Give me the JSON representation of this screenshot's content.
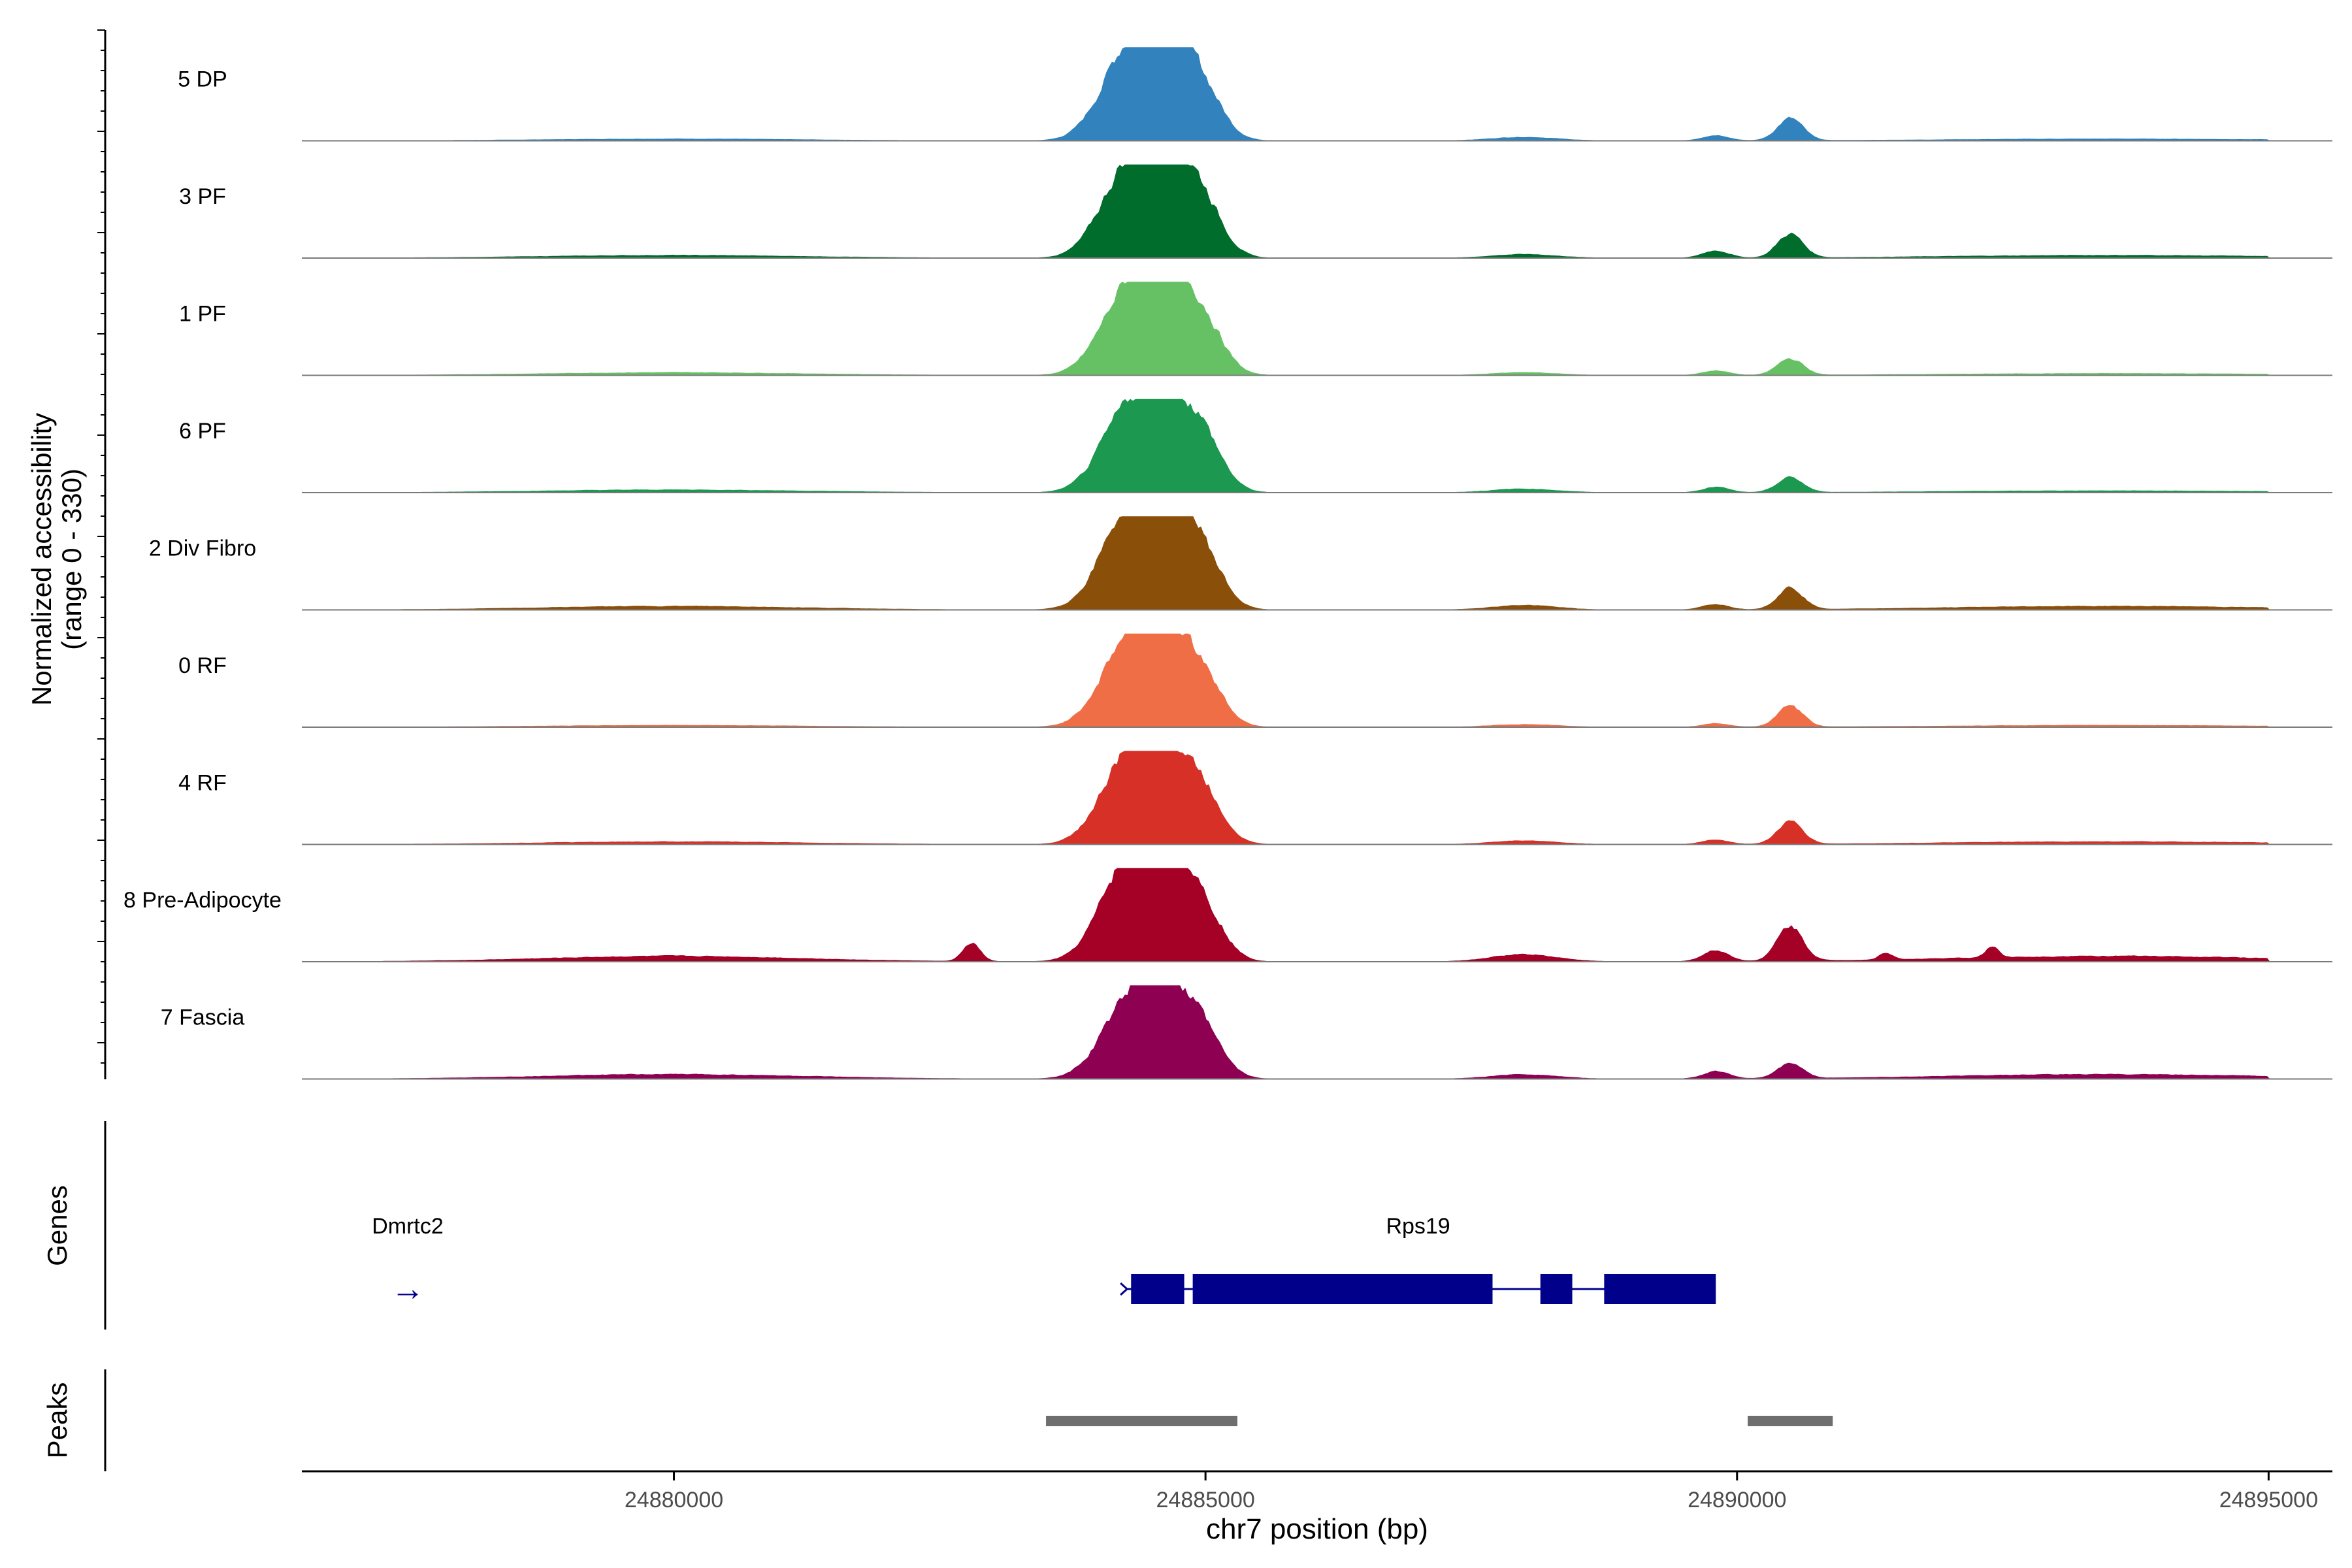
{
  "chart_data": {
    "type": "area",
    "title": "",
    "ylabel_line1": "Normalized accessibility",
    "ylabel_line2": "(range 0 - 330)",
    "y_range": [
      0,
      330
    ],
    "xlabel": "chr7 position (bp)",
    "x_domain": [
      24876500,
      24895600
    ],
    "x_ticks": [
      24880000,
      24885000,
      24890000,
      24895000
    ],
    "x_tick_labels": [
      "24880000",
      "24885000",
      "24890000",
      "24895000"
    ],
    "genes_label": "Genes",
    "peaks_label": "Peaks",
    "tracks": [
      {
        "name": "5 DP",
        "color": "#3182bd",
        "peaks": [
          [
            24884250,
            250,
            0.85
          ],
          [
            24884600,
            220,
            0.92
          ],
          [
            24884950,
            200,
            0.55
          ],
          [
            24880000,
            1200,
            0.02
          ],
          [
            24893500,
            1500,
            0.02
          ],
          [
            24890500,
            120,
            0.24
          ],
          [
            24889800,
            120,
            0.06
          ],
          [
            24888000,
            300,
            0.04
          ]
        ]
      },
      {
        "name": "3 PF",
        "color": "#006d2c",
        "peaks": [
          [
            24884250,
            250,
            0.85
          ],
          [
            24884600,
            220,
            0.97
          ],
          [
            24884950,
            200,
            0.6
          ],
          [
            24880000,
            1200,
            0.03
          ],
          [
            24893500,
            1500,
            0.03
          ],
          [
            24890500,
            120,
            0.26
          ],
          [
            24889800,
            120,
            0.08
          ],
          [
            24888000,
            300,
            0.04
          ]
        ]
      },
      {
        "name": "1 PF",
        "color": "#66c164",
        "peaks": [
          [
            24884250,
            250,
            0.8
          ],
          [
            24884600,
            220,
            0.84
          ],
          [
            24884950,
            200,
            0.6
          ],
          [
            24880000,
            1200,
            0.03
          ],
          [
            24893500,
            1500,
            0.02
          ],
          [
            24890500,
            120,
            0.18
          ],
          [
            24889800,
            120,
            0.05
          ],
          [
            24888000,
            300,
            0.03
          ]
        ]
      },
      {
        "name": "6 PF",
        "color": "#1d9850",
        "peaks": [
          [
            24884250,
            250,
            0.76
          ],
          [
            24884600,
            220,
            0.82
          ],
          [
            24884950,
            200,
            0.6
          ],
          [
            24880000,
            1200,
            0.03
          ],
          [
            24893500,
            1500,
            0.02
          ],
          [
            24890500,
            120,
            0.16
          ],
          [
            24889800,
            120,
            0.06
          ],
          [
            24888000,
            300,
            0.04
          ]
        ]
      },
      {
        "name": "2 Div Fibro",
        "color": "#8a4f09",
        "peaks": [
          [
            24884250,
            250,
            0.92
          ],
          [
            24884600,
            220,
            0.95
          ],
          [
            24884950,
            200,
            0.6
          ],
          [
            24880000,
            1200,
            0.04
          ],
          [
            24893500,
            1500,
            0.04
          ],
          [
            24890500,
            120,
            0.24
          ],
          [
            24889800,
            120,
            0.06
          ],
          [
            24888000,
            300,
            0.05
          ]
        ]
      },
      {
        "name": "0 RF",
        "color": "#f06e46",
        "peaks": [
          [
            24884250,
            250,
            0.82
          ],
          [
            24884600,
            220,
            0.8
          ],
          [
            24884950,
            200,
            0.55
          ],
          [
            24880000,
            1200,
            0.02
          ],
          [
            24893500,
            1500,
            0.02
          ],
          [
            24890500,
            120,
            0.22
          ],
          [
            24889800,
            120,
            0.04
          ],
          [
            24888000,
            300,
            0.03
          ]
        ]
      },
      {
        "name": "4 RF",
        "color": "#d73027",
        "peaks": [
          [
            24884250,
            250,
            0.82
          ],
          [
            24884600,
            220,
            0.78
          ],
          [
            24884950,
            200,
            0.55
          ],
          [
            24880000,
            1200,
            0.03
          ],
          [
            24893500,
            1500,
            0.03
          ],
          [
            24890500,
            120,
            0.24
          ],
          [
            24889800,
            120,
            0.05
          ],
          [
            24888000,
            300,
            0.04
          ]
        ]
      },
      {
        "name": "8 Pre-Adipocyte",
        "color": "#a50026",
        "peaks": [
          [
            24884250,
            250,
            0.95
          ],
          [
            24884600,
            220,
            0.92
          ],
          [
            24884950,
            200,
            0.6
          ],
          [
            24882800,
            80,
            0.2
          ],
          [
            24880000,
            1200,
            0.06
          ],
          [
            24893500,
            1500,
            0.06
          ],
          [
            24890500,
            120,
            0.38
          ],
          [
            24889800,
            120,
            0.12
          ],
          [
            24888000,
            300,
            0.08
          ],
          [
            24892400,
            60,
            0.12
          ],
          [
            24891400,
            60,
            0.08
          ]
        ]
      },
      {
        "name": "7 Fascia",
        "color": "#8e0152",
        "peaks": [
          [
            24884250,
            250,
            0.7
          ],
          [
            24884600,
            220,
            0.82
          ],
          [
            24884950,
            200,
            0.5
          ],
          [
            24880000,
            1200,
            0.05
          ],
          [
            24893500,
            1500,
            0.05
          ],
          [
            24890500,
            120,
            0.16
          ],
          [
            24889800,
            120,
            0.08
          ],
          [
            24888000,
            300,
            0.05
          ]
        ]
      }
    ],
    "genes": [
      {
        "name": "Dmrtc2",
        "strand": "→",
        "start": 24877650,
        "end": 24878100
      },
      {
        "name": "Rps19",
        "strand": "→",
        "start": 24884250,
        "end": 24889750,
        "exons": [
          [
            24884300,
            24884800
          ],
          [
            24884880,
            24887700
          ],
          [
            24888150,
            24888450
          ],
          [
            24888750,
            24889800
          ]
        ]
      }
    ],
    "peak_regions": [
      [
        24883500,
        24885300
      ],
      [
        24890100,
        24890900
      ]
    ]
  }
}
